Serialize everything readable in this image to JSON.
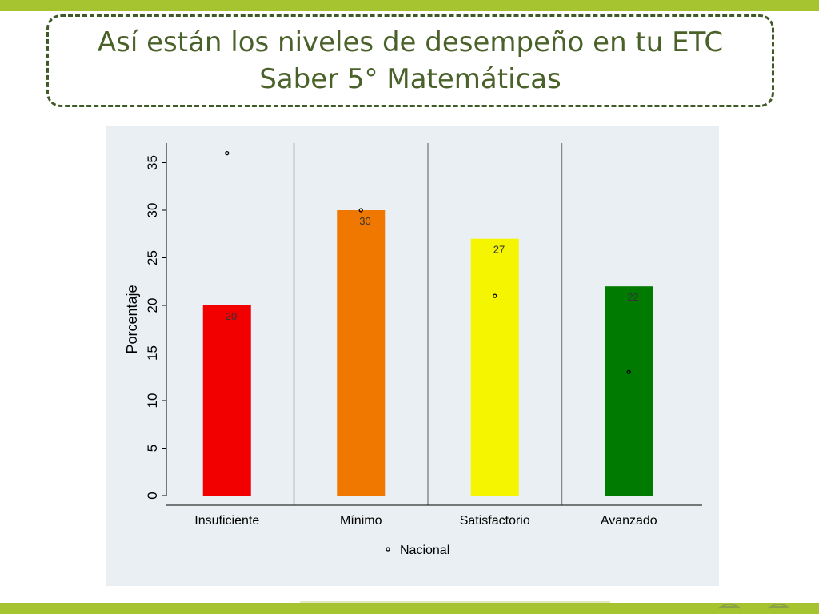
{
  "slide": {
    "title": "Así están los niveles de desempeño en tu ETC\nSaber 5° Matemáticas"
  },
  "chart_data": {
    "type": "bar",
    "title": "",
    "xlabel": "",
    "ylabel": "Porcentaje",
    "ylim": [
      0,
      37
    ],
    "yticks": [
      0,
      5,
      10,
      15,
      20,
      25,
      30,
      35
    ],
    "categories": [
      "Insuficiente",
      "Mínimo",
      "Satisfactorio",
      "Avanzado"
    ],
    "values": [
      20,
      30,
      27,
      22
    ],
    "data_labels": [
      "20",
      "30",
      "27",
      "22"
    ],
    "bar_colors": [
      "#f20000",
      "#f07800",
      "#f5f500",
      "#007a00"
    ],
    "series": [
      {
        "name": "Nacional",
        "type": "scatter",
        "values": [
          36,
          30,
          21,
          13
        ]
      }
    ],
    "legend": {
      "position": "bottom-center",
      "entries": [
        "Nacional"
      ]
    },
    "grid": false
  }
}
